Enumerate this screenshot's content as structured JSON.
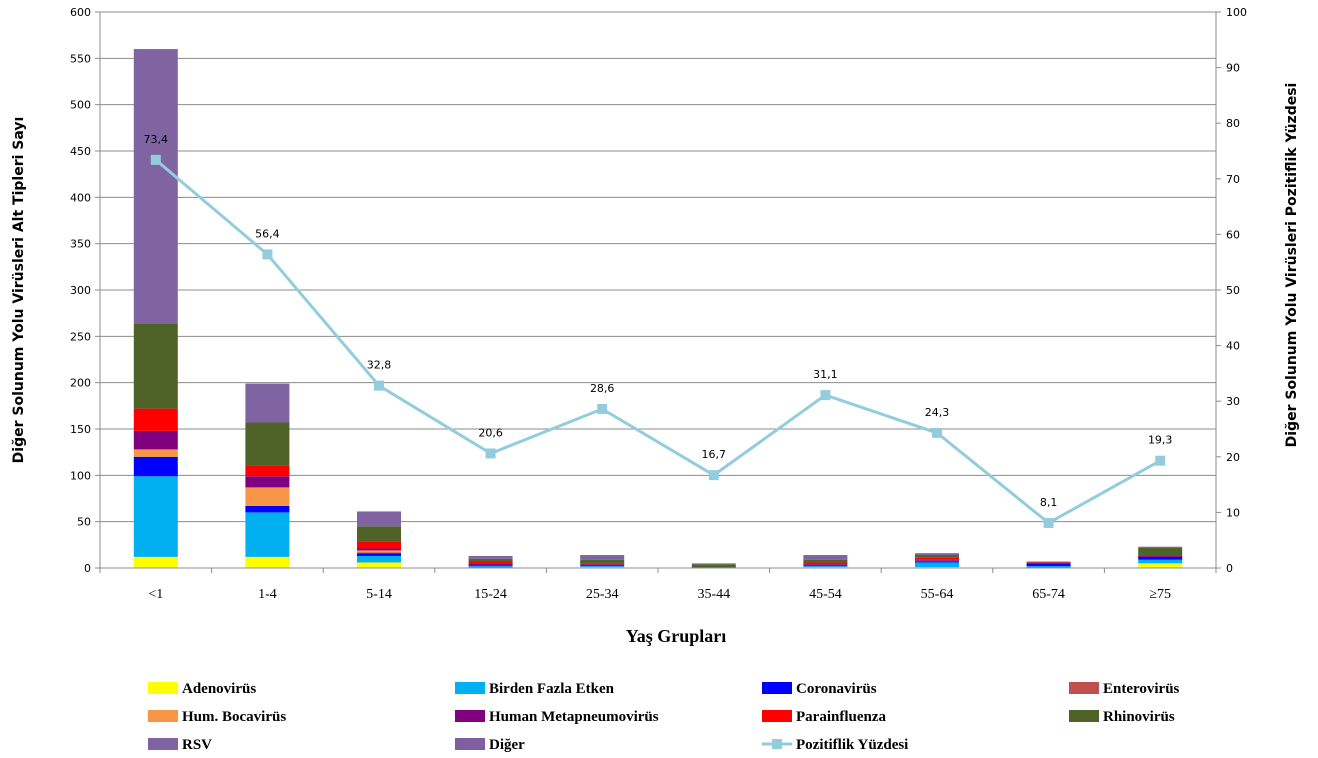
{
  "chart_data": {
    "type": "bar",
    "stacked": true,
    "xlabel": "Yaş Grupları",
    "ylabel": "Diğer Solunum Yolu Virüsleri  Alt Tipleri Sayı",
    "y2label": "Diğer Solunum Yolu Virüsleri  Pozitiflik Yüzdesi",
    "ylim": [
      0,
      600
    ],
    "y2lim": [
      0,
      100
    ],
    "yticks": [
      "0",
      "50",
      "100",
      "150",
      "200",
      "250",
      "300",
      "350",
      "400",
      "450",
      "500",
      "550",
      "600"
    ],
    "y2ticks": [
      "0",
      "10",
      "20",
      "30",
      "40",
      "50",
      "60",
      "70",
      "80",
      "90",
      "100"
    ],
    "grid": true,
    "legend_position": "bottom",
    "categories": [
      "<1",
      "1-4",
      "5-14",
      "15-24",
      "25-34",
      "35-44",
      "45-54",
      "55-64",
      "65-74",
      "≥75"
    ],
    "series": [
      {
        "name": "Adenovirüs",
        "color": "#FFFF00",
        "values": [
          12,
          12,
          6,
          0,
          1,
          0,
          1,
          1,
          0,
          5
        ]
      },
      {
        "name": "Birden Fazla Etken",
        "color": "#00B0F0",
        "values": [
          87,
          48,
          7,
          2,
          1,
          0,
          1,
          5,
          2,
          4
        ]
      },
      {
        "name": "Coronavirüs",
        "color": "#0000FF",
        "values": [
          21,
          7,
          3,
          1,
          1,
          0,
          1,
          1,
          3,
          3
        ]
      },
      {
        "name": "Enterovirüs",
        "color": "#C0504D",
        "values": [
          0,
          0,
          1,
          0,
          0,
          0,
          0,
          1,
          0,
          0
        ]
      },
      {
        "name": "Hum. Bocavirüs",
        "color": "#F79646",
        "values": [
          8,
          20,
          2,
          0,
          0,
          0,
          0,
          0,
          0,
          0
        ]
      },
      {
        "name": "Human Metapneumovirüs",
        "color": "#800080",
        "values": [
          20,
          12,
          2,
          2,
          1,
          0,
          1,
          1,
          0,
          1
        ]
      },
      {
        "name": "Parainfluenza",
        "color": "#FF0000",
        "values": [
          24,
          12,
          8,
          2,
          1,
          1,
          2,
          2,
          1,
          1
        ]
      },
      {
        "name": "Rhinovirüs",
        "color": "#4F6228",
        "values": [
          92,
          46,
          16,
          3,
          4,
          3,
          3,
          3,
          0,
          8
        ]
      },
      {
        "name": "RSV",
        "color": "#8064A2",
        "values": [
          296,
          42,
          16,
          3,
          5,
          1,
          5,
          2,
          1,
          1
        ]
      },
      {
        "name": "Diğer",
        "color": "#7F5F9F",
        "values": [
          0,
          0,
          0,
          0,
          0,
          0,
          0,
          0,
          0,
          0
        ]
      }
    ],
    "line": {
      "name": "Pozitiflik Yüzdesi",
      "axis": "y2",
      "color": "#93CDDD",
      "values": [
        73.4,
        56.4,
        32.8,
        20.6,
        28.6,
        16.7,
        31.1,
        24.3,
        8.1,
        19.3
      ],
      "labels": [
        "73,4",
        "56,4",
        "32,8",
        "20,6",
        "28,6",
        "16,7",
        "31,1",
        "24,3",
        "8,1",
        "19,3"
      ]
    },
    "legend_columns": 4
  }
}
